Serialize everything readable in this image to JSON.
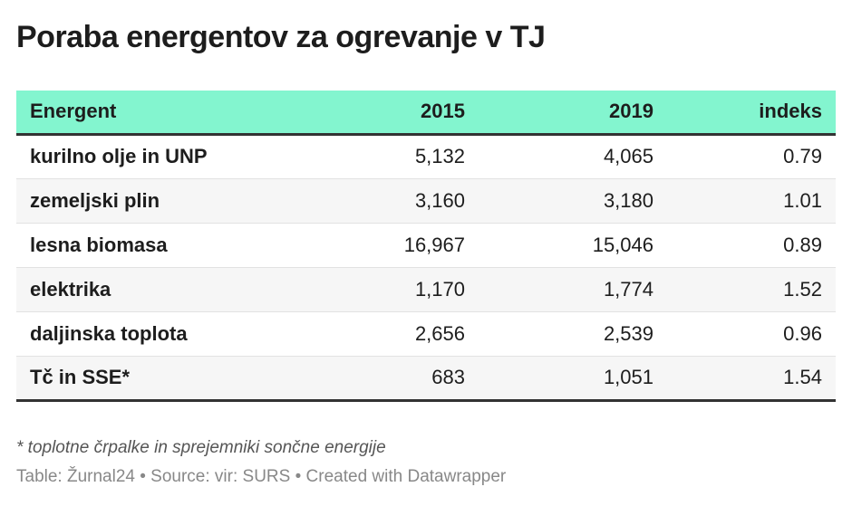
{
  "title": "Poraba energentov za ogrevanje v TJ",
  "colors": {
    "header_bg": "#83f5cf",
    "stripe": "#f6f6f6",
    "rule": "#333333"
  },
  "chart_data": {
    "type": "table",
    "columns": [
      "Energent",
      "2015",
      "2019",
      "indeks"
    ],
    "rows": [
      [
        "kurilno olje in UNP",
        "5,132",
        "4,065",
        "0.79"
      ],
      [
        "zemeljski plin",
        "3,160",
        "3,180",
        "1.01"
      ],
      [
        "lesna biomasa",
        "16,967",
        "15,046",
        "0.89"
      ],
      [
        "elektrika",
        "1,170",
        "1,774",
        "1.52"
      ],
      [
        "daljinska toplota",
        "2,656",
        "2,539",
        "0.96"
      ],
      [
        "Tč in SSE*",
        "683",
        "1,051",
        "1.54"
      ]
    ]
  },
  "footnote": "* toplotne črpalke in sprejemniki sončne energije",
  "source": "Table: Žurnal24 • Source: vir: SURS • Created with Datawrapper"
}
